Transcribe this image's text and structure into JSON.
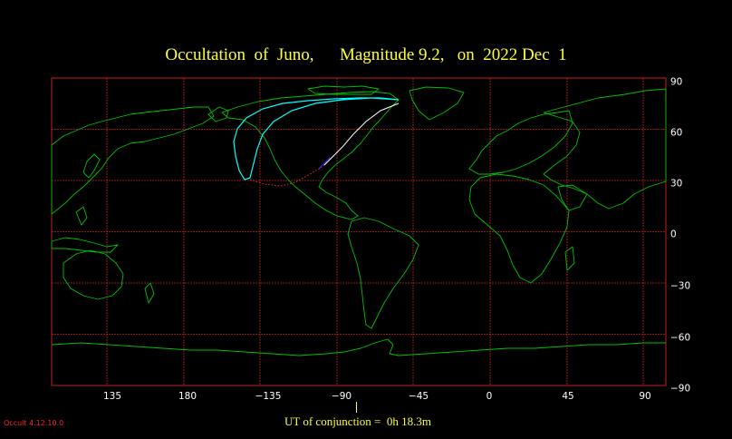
{
  "title": "Occultation  of  Juno,      Magnitude 9.2,   on  2022 Dec  1",
  "conjunction_label": "UT of conjunction =  0h 18.3m",
  "version_label": "Occult 4.12.10.0",
  "map": {
    "projection": "equirectangular",
    "lon_range": [
      86,
      452
    ],
    "lat_range": [
      -90,
      90
    ],
    "longitude_ticks": [
      "135",
      "180",
      "−135",
      "−90",
      "−45",
      "0",
      "45",
      "90"
    ],
    "latitude_ticks": [
      "90",
      "60",
      "30",
      "0",
      "−30",
      "−60",
      "−90"
    ],
    "grid": true,
    "colors": {
      "background": "#000000",
      "grid": "#c02020",
      "coast": "#00c000",
      "path_central": "#ffffff",
      "path_limits": "#00ffff",
      "path_night": "#ff3030",
      "title": "#ffff33",
      "version": "#ff2020"
    }
  }
}
